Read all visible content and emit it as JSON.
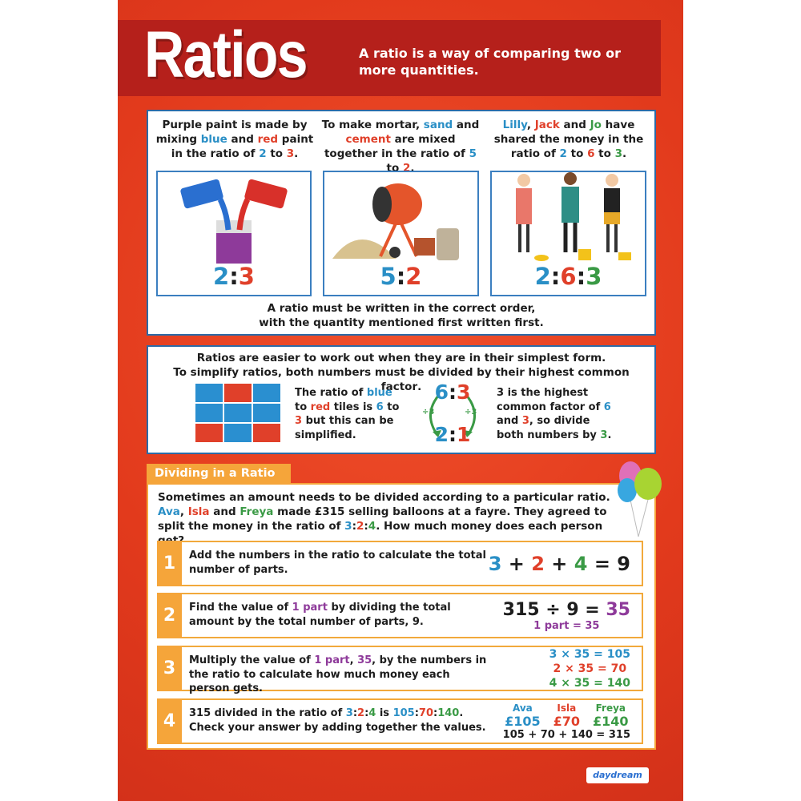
{
  "header": {
    "title": "Ratios",
    "subtitle": "A ratio is a way of comparing two or more quantities."
  },
  "examples": [
    {
      "text": [
        "Purple paint is made by mixing ",
        "blue",
        " and ",
        "red",
        " paint in the ratio of ",
        "2",
        " to ",
        "3",
        "."
      ],
      "ratio": [
        "2",
        ":",
        "3"
      ]
    },
    {
      "text": [
        "To make mortar, ",
        "sand",
        " and ",
        "cement",
        " are mixed together in the ratio of ",
        "5",
        " to ",
        "2",
        "."
      ],
      "ratio": [
        "5",
        ":",
        "2"
      ]
    },
    {
      "text": [
        "Lilly",
        ", ",
        "Jack",
        " and ",
        "Jo",
        " have shared the money in the ratio of ",
        "2",
        " to ",
        "6",
        " to ",
        "3",
        "."
      ],
      "ratio": [
        "2",
        ":",
        "6",
        ":",
        "3"
      ]
    }
  ],
  "order_note": [
    [
      "A ratio must be written in the correct order,"
    ],
    [
      "with ",
      "the quantity mentioned first written first",
      "."
    ]
  ],
  "simplify": {
    "intro": [
      [
        "Ratios are easier to work out when they are in their simplest form."
      ],
      [
        "To simplify ratios, both numbers must be ",
        "divided by their highest common factor",
        "."
      ]
    ],
    "tiles_text": [
      "The ratio of ",
      "blue",
      " to ",
      "red",
      " tiles is ",
      "6",
      " to ",
      "3",
      " but this can be simplified."
    ],
    "from": [
      "6",
      ":",
      "3"
    ],
    "op_left": "÷3",
    "op_right": "÷3",
    "to": [
      "2",
      ":",
      "1"
    ],
    "hcf_text": [
      "3",
      " is the highest common factor of ",
      "6",
      " and ",
      "3",
      ", so divide both numbers by ",
      "3",
      "."
    ]
  },
  "dividing": {
    "heading": "Dividing in a Ratio",
    "intro": [
      [
        "Sometimes an amount needs to be divided according to a particular ratio."
      ],
      [
        "Ava",
        ", ",
        "Isla",
        " and ",
        "Freya",
        " made ",
        "£315",
        " selling balloons at a fayre. They agreed to split the money in the ratio of ",
        "3",
        ":",
        "2",
        ":",
        "4",
        ". How much money does each person get?"
      ]
    ],
    "steps": [
      {
        "number": "1",
        "text": [
          "Add the numbers in the ratio to calculate the total number of parts."
        ],
        "work": [
          [
            "3",
            " + ",
            "2",
            " + ",
            "4",
            " = 9"
          ]
        ]
      },
      {
        "number": "2",
        "text": [
          "Find the value of ",
          "1 part",
          " by dividing the total amount by the total number of parts, 9."
        ],
        "work": [
          [
            "315 ÷ 9 = ",
            "35"
          ],
          [
            "1 part = 35"
          ]
        ]
      },
      {
        "number": "3",
        "text": [
          "Multiply the value of ",
          "1 part",
          ", ",
          "35",
          ", by the numbers in the ratio to calculate how much money each person gets."
        ],
        "work": [
          [
            "3 × 35 = 105"
          ],
          [
            "2 × 35 = 70"
          ],
          [
            "4 × 35 = 140"
          ]
        ]
      },
      {
        "number": "4",
        "text": [
          "315 divided in the ratio of ",
          "3",
          ":",
          "2",
          ":",
          "4",
          " is ",
          "105",
          ":",
          "70",
          ":",
          "140",
          ". Check your answer by adding together the values."
        ],
        "work": {
          "names": [
            "Ava",
            "Isla",
            "Freya"
          ],
          "amounts": [
            "£105",
            "£70",
            "£140"
          ],
          "total": "105 + 70 + 140 = 315"
        }
      }
    ]
  },
  "footer": {
    "logo": "daydream"
  }
}
